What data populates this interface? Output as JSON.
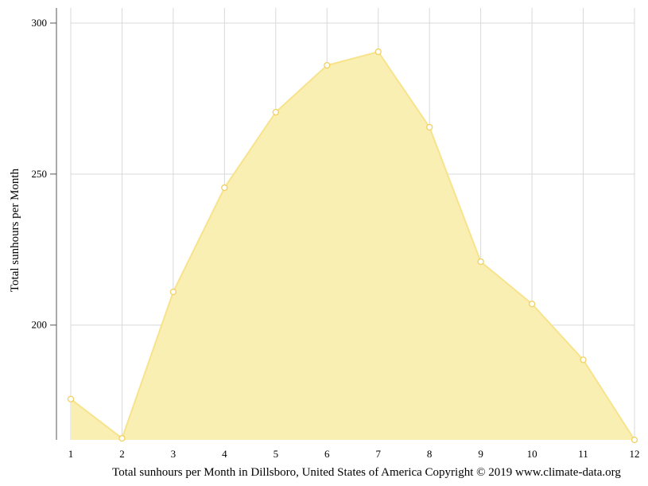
{
  "chart_data": {
    "type": "area",
    "x": [
      1,
      2,
      3,
      4,
      5,
      6,
      7,
      8,
      9,
      10,
      11,
      12
    ],
    "values": [
      175.5,
      162.5,
      211,
      245.5,
      270.5,
      286,
      290.5,
      265.5,
      221,
      207,
      188.5,
      162
    ],
    "ylabel": "Total sunhours per Month",
    "xlabel": "Total sunhours per Month in Dillsboro, United States of America Copyright © 2019 www.climate-data.org",
    "y_ticks": [
      200,
      250,
      300
    ],
    "x_ticks": [
      1,
      2,
      3,
      4,
      5,
      6,
      7,
      8,
      9,
      10,
      11,
      12
    ],
    "ylim": [
      162,
      305
    ],
    "xlim": [
      1,
      12
    ],
    "grid": true,
    "colors": {
      "fill": "#faeeaf",
      "line": "#f7e38c",
      "marker_fill": "#ffffff",
      "marker_stroke": "#f0d060",
      "grid": "#d9d9d9"
    }
  }
}
